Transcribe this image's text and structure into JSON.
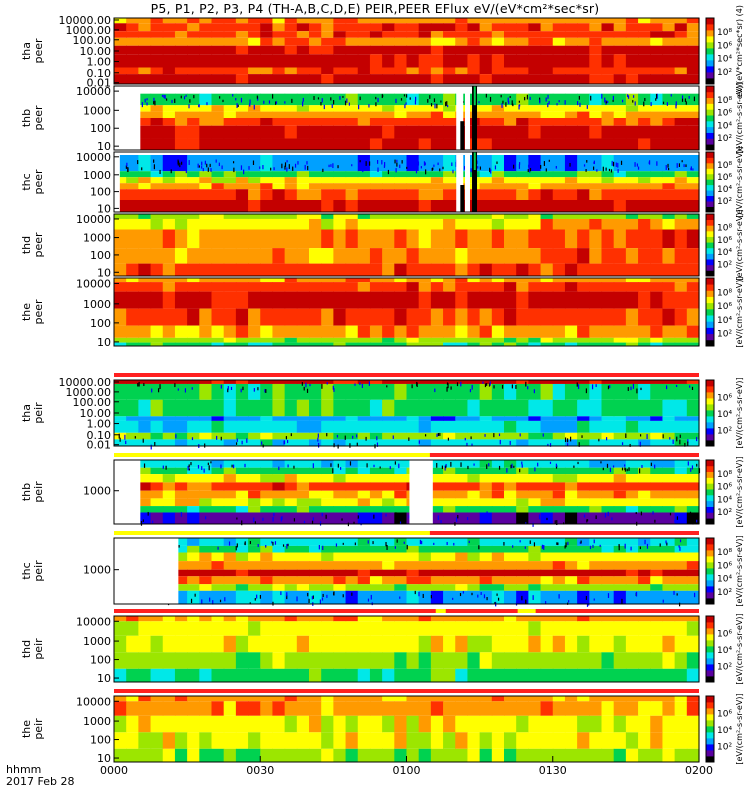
{
  "chart_data": {
    "type": "heatmap",
    "title": "P5, P1, P2, P3, P4 (TH-A,B,C,D,E) PEIR,PEER EFlux eV/(eV*cm²*sec*sr)",
    "x_tick_labels": [
      "0000",
      "0030",
      "0100",
      "0130",
      "0200"
    ],
    "x_range": [
      "00:00",
      "02:00"
    ],
    "x_label_line1": "hhmm",
    "x_label_line2": "2017 Feb 28",
    "colorbar_unit": "[eV/(cm²-s-sr-eV)]",
    "colorbar_unit_wide": "eV/(eV*cm²*sec*sr) (4)",
    "colorbar_ticks": [
      "10²",
      "10⁴",
      "10⁶",
      "10⁸"
    ],
    "colorscale": [
      "#000000",
      "#5a00a0",
      "#0000ff",
      "#00a0ff",
      "#00e8e8",
      "#00d250",
      "#9ce600",
      "#ffff00",
      "#ff9a00",
      "#ff3000",
      "#c40000"
    ],
    "panels": [
      {
        "probe": "tha",
        "species": "peer",
        "yticks": [
          "10000.00",
          "1000.00",
          "100.00",
          "10.00",
          "1.00",
          "0.10",
          "0.01"
        ],
        "colorbar_ticks": [
          "10²",
          "10⁴",
          "10⁶",
          "10⁸"
        ]
      },
      {
        "probe": "thb",
        "species": "peer",
        "yticks": [
          "10000",
          "1000",
          "100",
          "10"
        ],
        "colorbar_ticks": [
          "10²",
          "10⁴",
          "10⁶",
          "10⁸"
        ]
      },
      {
        "probe": "thc",
        "species": "peer",
        "yticks": [
          "10000",
          "1000",
          "100",
          "10"
        ],
        "colorbar_ticks": [
          "10²",
          "10⁴",
          "10⁶",
          "10⁸"
        ]
      },
      {
        "probe": "thd",
        "species": "peer",
        "yticks": [
          "10000",
          "1000",
          "100",
          "10"
        ],
        "colorbar_ticks": [
          "10²",
          "10⁴",
          "10⁶",
          "10⁸"
        ]
      },
      {
        "probe": "the",
        "species": "peer",
        "yticks": [
          "10000",
          "1000",
          "100",
          "10"
        ],
        "colorbar_ticks": [
          "10²",
          "10⁴",
          "10⁶",
          "10⁸"
        ]
      },
      {
        "probe": "tha",
        "species": "peir",
        "yticks": [
          "10000.00",
          "1000.00",
          "100.00",
          "10.00",
          "1.00",
          "0.10",
          "0.01"
        ],
        "colorbar_ticks": [
          "10²",
          "10⁴",
          "10⁶"
        ]
      },
      {
        "probe": "thb",
        "species": "peir",
        "yticks": [
          "1000"
        ],
        "colorbar_ticks": [
          "10²",
          "10⁴",
          "10⁶",
          "10⁸"
        ]
      },
      {
        "probe": "thc",
        "species": "peir",
        "yticks": [
          "1000"
        ],
        "colorbar_ticks": [
          "10²",
          "10⁴",
          "10⁶",
          "10⁸"
        ]
      },
      {
        "probe": "thd",
        "species": "peir",
        "yticks": [
          "10000",
          "1000",
          "100",
          "10"
        ],
        "colorbar_ticks": [
          "10²",
          "10⁴",
          "10⁶"
        ]
      },
      {
        "probe": "the",
        "species": "peir",
        "yticks": [
          "10000",
          "1000",
          "100",
          "10"
        ],
        "colorbar_ticks": [
          "10²",
          "10⁴",
          "10⁶"
        ]
      }
    ]
  }
}
